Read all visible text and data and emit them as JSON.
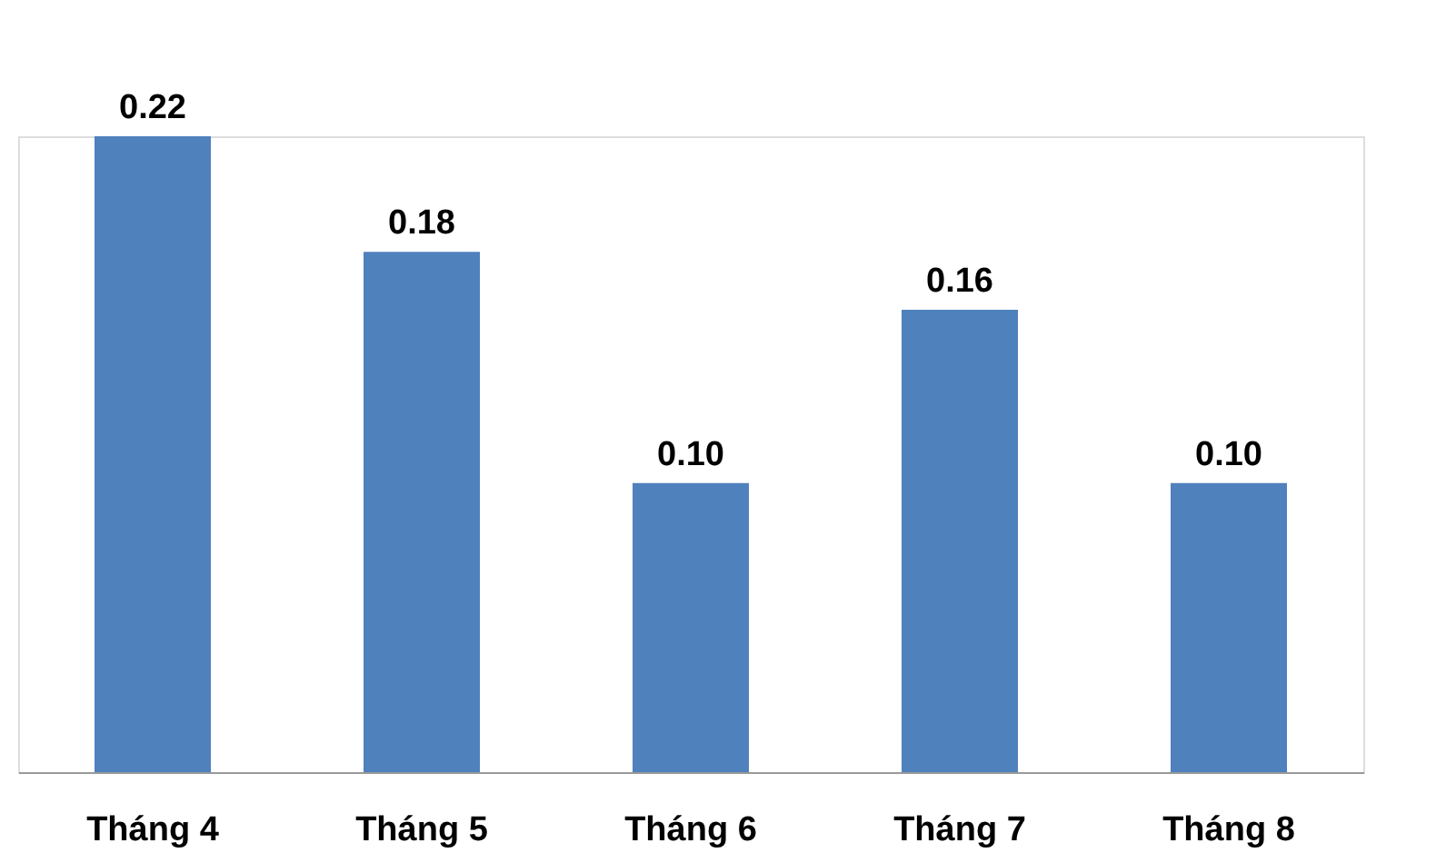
{
  "chart_data": {
    "type": "bar",
    "categories": [
      "Tháng 4",
      "Tháng 5",
      "Tháng 6",
      "Tháng 7",
      "Tháng 8"
    ],
    "values": [
      0.22,
      0.18,
      0.1,
      0.16,
      0.1
    ],
    "value_labels": [
      "0.22",
      "0.18",
      "0.10",
      "0.16",
      "0.10"
    ],
    "color": "#4f81bd"
  }
}
